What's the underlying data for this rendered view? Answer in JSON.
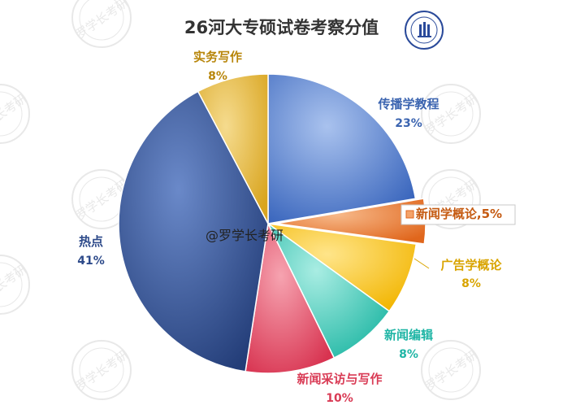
{
  "chart_data": {
    "type": "pie",
    "title": "26河大专硕试卷考察分值",
    "slices": [
      {
        "label": "传播学教程",
        "pct_label": "23%",
        "value": 23,
        "color": "#4472c4"
      },
      {
        "label": "新闻学概论,5%",
        "pct_label": "",
        "value": 5,
        "color": "#ed7d31"
      },
      {
        "label": "广告学概论",
        "pct_label": "8%",
        "value": 8,
        "color": "#ffc000"
      },
      {
        "label": "新闻编辑",
        "pct_label": "8%",
        "value": 8,
        "color": "#40c9b8"
      },
      {
        "label": "新闻采访与写作",
        "pct_label": "10%",
        "value": 10,
        "color": "#e0485f"
      },
      {
        "label": "热点",
        "pct_label": "41%",
        "value": 41,
        "color": "#2e4a8a"
      },
      {
        "label": "实务写作",
        "pct_label": "8%",
        "value": 8,
        "color": "#e8b530"
      }
    ]
  },
  "watermark": "@罗学长考研",
  "seal_text": "罗学长考研"
}
